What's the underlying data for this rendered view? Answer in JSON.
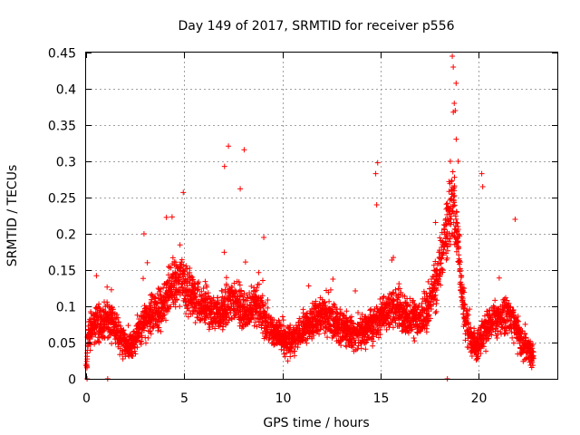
{
  "chart_data": {
    "type": "scatter",
    "title": "Day 149 of 2017, SRMTID for receiver p556",
    "xlabel": "GPS time / hours",
    "ylabel": "SRMTID / TECUs",
    "xlim": [
      0,
      24
    ],
    "ylim": [
      0,
      0.45
    ],
    "xticks": [
      0,
      5,
      10,
      15,
      20
    ],
    "xtick_labels": [
      "0",
      "5",
      "10",
      "15",
      "20"
    ],
    "yticks": [
      0,
      0.05,
      0.1,
      0.15,
      0.2,
      0.25,
      0.3,
      0.35,
      0.4,
      0.45
    ],
    "ytick_labels": [
      "0",
      "0.05",
      "0.1",
      "0.15",
      "0.2",
      "0.25",
      "0.3",
      "0.35",
      "0.4",
      "0.45"
    ],
    "grid": true,
    "marker": "+",
    "series": [
      {
        "name": "SRMTID",
        "color": "#ff0000",
        "trend": {
          "x": [
            0.0,
            0.1,
            0.3,
            0.5,
            0.8,
            1.0,
            1.2,
            1.5,
            1.8,
            2.0,
            2.2,
            2.5,
            2.8,
            3.0,
            3.3,
            3.6,
            3.9,
            4.2,
            4.5,
            4.8,
            5.0,
            5.3,
            5.6,
            5.9,
            6.2,
            6.5,
            6.8,
            7.1,
            7.4,
            7.7,
            8.0,
            8.3,
            8.6,
            8.9,
            9.2,
            9.5,
            9.8,
            10.1,
            10.4,
            10.7,
            11.0,
            11.3,
            11.6,
            11.9,
            12.2,
            12.5,
            12.8,
            13.1,
            13.4,
            13.7,
            14.0,
            14.3,
            14.6,
            14.9,
            15.2,
            15.5,
            15.8,
            16.1,
            16.4,
            16.7,
            17.0,
            17.3,
            17.6,
            17.9,
            18.1,
            18.3,
            18.5,
            18.7,
            18.9,
            19.1,
            19.3,
            19.5,
            19.7,
            19.9,
            20.1,
            20.4,
            20.7,
            21.0,
            21.3,
            21.6,
            21.9,
            22.2,
            22.5,
            22.8
          ],
          "y": [
            0.0,
            0.06,
            0.07,
            0.08,
            0.075,
            0.08,
            0.08,
            0.07,
            0.055,
            0.05,
            0.045,
            0.055,
            0.07,
            0.08,
            0.085,
            0.09,
            0.1,
            0.12,
            0.13,
            0.14,
            0.13,
            0.115,
            0.11,
            0.1,
            0.1,
            0.095,
            0.09,
            0.1,
            0.11,
            0.1,
            0.09,
            0.095,
            0.1,
            0.095,
            0.08,
            0.065,
            0.06,
            0.055,
            0.05,
            0.06,
            0.07,
            0.075,
            0.08,
            0.085,
            0.09,
            0.08,
            0.075,
            0.07,
            0.065,
            0.06,
            0.065,
            0.07,
            0.075,
            0.08,
            0.09,
            0.1,
            0.1,
            0.09,
            0.08,
            0.085,
            0.08,
            0.09,
            0.11,
            0.14,
            0.17,
            0.2,
            0.23,
            0.25,
            0.2,
            0.13,
            0.08,
            0.06,
            0.05,
            0.045,
            0.055,
            0.07,
            0.08,
            0.085,
            0.09,
            0.085,
            0.07,
            0.05,
            0.04,
            0.035
          ]
        },
        "peaks": [
          {
            "x": 2.95,
            "y": 0.2
          },
          {
            "x": 4.95,
            "y": 0.257
          },
          {
            "x": 7.25,
            "y": 0.321
          },
          {
            "x": 7.05,
            "y": 0.293
          },
          {
            "x": 8.05,
            "y": 0.316
          },
          {
            "x": 7.85,
            "y": 0.262
          },
          {
            "x": 9.05,
            "y": 0.195
          },
          {
            "x": 14.85,
            "y": 0.298
          },
          {
            "x": 14.75,
            "y": 0.283
          },
          {
            "x": 14.8,
            "y": 0.24
          },
          {
            "x": 18.65,
            "y": 0.445
          },
          {
            "x": 18.7,
            "y": 0.43
          },
          {
            "x": 18.75,
            "y": 0.38
          },
          {
            "x": 18.8,
            "y": 0.37
          },
          {
            "x": 18.55,
            "y": 0.3
          },
          {
            "x": 18.95,
            "y": 0.3
          },
          {
            "x": 20.15,
            "y": 0.283
          },
          {
            "x": 20.2,
            "y": 0.265
          },
          {
            "x": 21.85,
            "y": 0.22
          },
          {
            "x": 0.05,
            "y": 0.0
          },
          {
            "x": 1.1,
            "y": 0.0
          },
          {
            "x": 18.4,
            "y": 0.0
          }
        ]
      }
    ]
  }
}
